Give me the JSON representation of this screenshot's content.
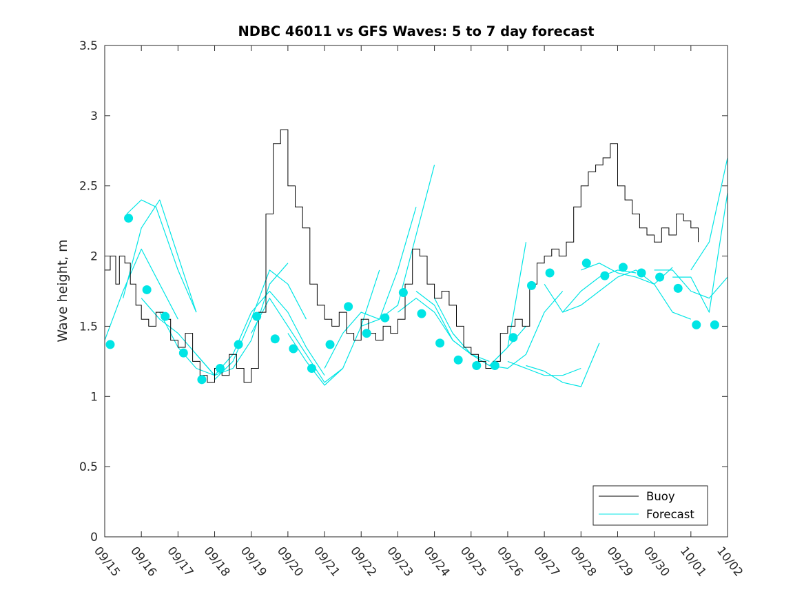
{
  "chart_data": {
    "type": "line",
    "title": "NDBC 46011 vs GFS Waves: 5 to 7 day forecast",
    "xlabel": "",
    "ylabel": "Wave height, m",
    "ylim": [
      0,
      3.5
    ],
    "xlim": [
      0,
      17
    ],
    "yticks": [
      0,
      0.5,
      1,
      1.5,
      2,
      2.5,
      3,
      3.5
    ],
    "ytick_labels": [
      "0",
      "0.5",
      "1",
      "1.5",
      "2",
      "2.5",
      "3",
      "3.5"
    ],
    "xticks": [
      0,
      1,
      2,
      3,
      4,
      5,
      6,
      7,
      8,
      9,
      10,
      11,
      12,
      13,
      14,
      15,
      16,
      17
    ],
    "xtick_labels": [
      "09/15",
      "09/16",
      "09/17",
      "09/18",
      "09/19",
      "09/20",
      "09/21",
      "09/22",
      "09/23",
      "09/24",
      "09/25",
      "09/26",
      "09/27",
      "09/28",
      "09/29",
      "09/30",
      "10/01",
      "10/02"
    ],
    "legend": {
      "position": "bottom-right",
      "entries": [
        {
          "label": "Buoy",
          "color": "#000000"
        },
        {
          "label": "Forecast",
          "color": "#00e5e5"
        }
      ]
    },
    "colors": {
      "buoy": "#000000",
      "forecast": "#00e5e5",
      "markers": "#00e5e5"
    },
    "buoy": {
      "name": "Buoy",
      "x": [
        0.0,
        0.15,
        0.3,
        0.4,
        0.55,
        0.7,
        0.85,
        1.0,
        1.2,
        1.4,
        1.6,
        1.8,
        2.0,
        2.2,
        2.4,
        2.6,
        2.8,
        3.0,
        3.2,
        3.4,
        3.6,
        3.8,
        4.0,
        4.2,
        4.4,
        4.6,
        4.8,
        5.0,
        5.2,
        5.4,
        5.6,
        5.8,
        6.0,
        6.2,
        6.4,
        6.6,
        6.8,
        7.0,
        7.2,
        7.4,
        7.6,
        7.8,
        8.0,
        8.2,
        8.4,
        8.6,
        8.8,
        9.0,
        9.2,
        9.4,
        9.6,
        9.8,
        10.0,
        10.2,
        10.4,
        10.6,
        10.8,
        11.0,
        11.2,
        11.4,
        11.6,
        11.8,
        12.0,
        12.2,
        12.4,
        12.6,
        12.8,
        13.0,
        13.2,
        13.4,
        13.6,
        13.8,
        14.0,
        14.2,
        14.4,
        14.6,
        14.8,
        15.0,
        15.2,
        15.4,
        15.6,
        15.8,
        16.0,
        16.2
      ],
      "values": [
        1.9,
        2.0,
        1.8,
        2.0,
        1.95,
        1.8,
        1.65,
        1.55,
        1.5,
        1.6,
        1.55,
        1.4,
        1.35,
        1.45,
        1.25,
        1.15,
        1.1,
        1.2,
        1.15,
        1.3,
        1.2,
        1.1,
        1.2,
        1.6,
        2.3,
        2.8,
        2.9,
        2.5,
        2.35,
        2.2,
        1.8,
        1.65,
        1.55,
        1.5,
        1.6,
        1.45,
        1.4,
        1.55,
        1.45,
        1.4,
        1.5,
        1.45,
        1.55,
        1.8,
        2.05,
        2.0,
        1.8,
        1.7,
        1.75,
        1.65,
        1.5,
        1.35,
        1.3,
        1.25,
        1.2,
        1.25,
        1.45,
        1.5,
        1.55,
        1.5,
        1.8,
        1.95,
        2.0,
        2.05,
        2.0,
        2.1,
        2.35,
        2.5,
        2.6,
        2.65,
        2.7,
        2.8,
        2.5,
        2.4,
        2.3,
        2.2,
        2.15,
        2.1,
        2.2,
        2.15,
        2.3,
        2.25,
        2.2,
        2.1
      ]
    },
    "forecast_series": [
      {
        "name": "Forecast",
        "x": [
          0.0,
          0.5,
          1.0,
          1.5,
          2.0
        ],
        "values": [
          1.4,
          1.75,
          2.05,
          1.8,
          1.55
        ]
      },
      {
        "name": "Forecast",
        "x": [
          0.5,
          1.0,
          1.5,
          2.0,
          2.5
        ],
        "values": [
          1.7,
          2.2,
          2.4,
          2.0,
          1.6
        ]
      },
      {
        "name": "Forecast",
        "x": [
          0.6,
          1.0,
          1.4,
          2.0,
          2.5
        ],
        "values": [
          2.3,
          2.4,
          2.35,
          1.9,
          1.6
        ]
      },
      {
        "name": "Forecast",
        "x": [
          1.0,
          1.5,
          2.0,
          2.5,
          3.0
        ],
        "values": [
          1.7,
          1.55,
          1.45,
          1.3,
          1.15
        ]
      },
      {
        "name": "Forecast",
        "x": [
          1.5,
          2.0,
          2.5,
          3.0,
          3.5
        ],
        "values": [
          1.6,
          1.35,
          1.2,
          1.15,
          1.3
        ]
      },
      {
        "name": "Forecast",
        "x": [
          2.5,
          3.0,
          3.5,
          4.0,
          4.5,
          5.0
        ],
        "values": [
          1.3,
          1.15,
          1.2,
          1.4,
          1.8,
          1.95
        ]
      },
      {
        "name": "Forecast",
        "x": [
          3.0,
          3.5,
          4.0,
          4.5,
          5.0,
          5.5
        ],
        "values": [
          1.12,
          1.25,
          1.55,
          1.9,
          1.8,
          1.55
        ]
      },
      {
        "name": "Forecast",
        "x": [
          3.5,
          4.0,
          4.5,
          5.0,
          5.5,
          6.0
        ],
        "values": [
          1.3,
          1.6,
          1.75,
          1.6,
          1.35,
          1.15
        ]
      },
      {
        "name": "Forecast",
        "x": [
          4.0,
          4.5,
          5.0,
          5.5,
          6.0,
          6.5
        ],
        "values": [
          1.45,
          1.7,
          1.5,
          1.3,
          1.1,
          1.2
        ]
      },
      {
        "name": "Forecast",
        "x": [
          5.0,
          5.5,
          6.0,
          6.5,
          7.0,
          7.5
        ],
        "values": [
          1.45,
          1.25,
          1.08,
          1.2,
          1.5,
          1.9
        ]
      },
      {
        "name": "Forecast",
        "x": [
          6.0,
          6.5,
          7.0,
          7.5,
          8.0,
          8.5
        ],
        "values": [
          1.2,
          1.45,
          1.6,
          1.55,
          1.9,
          2.35
        ]
      },
      {
        "name": "Forecast",
        "x": [
          7.0,
          7.5,
          8.0,
          8.5,
          9.0
        ],
        "values": [
          1.5,
          1.55,
          1.65,
          2.15,
          2.65
        ]
      },
      {
        "name": "Forecast",
        "x": [
          8.0,
          8.5,
          9.0,
          9.5,
          10.0
        ],
        "values": [
          1.6,
          1.7,
          1.6,
          1.4,
          1.3
        ]
      },
      {
        "name": "Forecast",
        "x": [
          8.5,
          9.0,
          9.5,
          10.0,
          10.5
        ],
        "values": [
          1.75,
          1.65,
          1.4,
          1.3,
          1.25
        ]
      },
      {
        "name": "Forecast",
        "x": [
          9.0,
          9.5,
          10.0,
          10.5,
          11.0,
          11.5
        ],
        "values": [
          1.7,
          1.45,
          1.3,
          1.22,
          1.35,
          1.5
        ]
      },
      {
        "name": "Forecast",
        "x": [
          9.5,
          10.0,
          10.5,
          11.0,
          11.5
        ],
        "values": [
          1.45,
          1.3,
          1.22,
          1.35,
          2.1
        ]
      },
      {
        "name": "Forecast",
        "x": [
          10.5,
          11.0,
          11.5,
          12.0,
          12.5
        ],
        "values": [
          1.22,
          1.2,
          1.3,
          1.6,
          1.75
        ]
      },
      {
        "name": "Forecast",
        "x": [
          11.0,
          11.5,
          12.0,
          12.5,
          13.0
        ],
        "values": [
          1.25,
          1.2,
          1.15,
          1.15,
          1.2
        ]
      },
      {
        "name": "Forecast",
        "x": [
          11.5,
          12.0,
          12.5,
          13.0,
          13.5
        ],
        "values": [
          1.22,
          1.18,
          1.1,
          1.07,
          1.38
        ]
      },
      {
        "name": "Forecast",
        "x": [
          12.0,
          12.5,
          13.0,
          13.5,
          14.0
        ],
        "values": [
          1.8,
          1.6,
          1.65,
          1.75,
          1.85
        ]
      },
      {
        "name": "Forecast",
        "x": [
          12.5,
          13.0,
          13.5,
          14.0,
          14.5
        ],
        "values": [
          1.6,
          1.75,
          1.85,
          1.9,
          1.88
        ]
      },
      {
        "name": "Forecast",
        "x": [
          13.0,
          13.5,
          14.0,
          14.5,
          15.0,
          15.5
        ],
        "values": [
          1.9,
          1.95,
          1.88,
          1.85,
          1.8,
          1.92
        ]
      },
      {
        "name": "Forecast",
        "x": [
          14.0,
          14.5,
          15.0,
          15.5,
          16.0
        ],
        "values": [
          1.85,
          1.9,
          1.8,
          1.6,
          1.55
        ]
      },
      {
        "name": "Forecast",
        "x": [
          15.0,
          15.5,
          16.0,
          16.5,
          17.0
        ],
        "values": [
          1.9,
          1.9,
          1.75,
          1.7,
          1.85
        ]
      },
      {
        "name": "Forecast",
        "x": [
          15.5,
          16.0,
          16.5,
          17.0
        ],
        "values": [
          1.85,
          1.85,
          1.6,
          2.45
        ]
      },
      {
        "name": "Forecast",
        "x": [
          16.0,
          16.5,
          17.0
        ],
        "values": [
          1.9,
          2.1,
          2.7
        ]
      }
    ],
    "forecast_markers": {
      "x": [
        0.15,
        0.65,
        1.15,
        1.65,
        2.15,
        2.65,
        3.15,
        3.65,
        4.15,
        4.65,
        5.15,
        5.65,
        6.15,
        6.65,
        7.15,
        7.65,
        8.15,
        8.65,
        9.15,
        9.65,
        10.15,
        10.65,
        11.15,
        11.65,
        12.15,
        13.15,
        13.65,
        14.15,
        14.65,
        15.15,
        15.65,
        16.15,
        16.65
      ],
      "values": [
        1.37,
        2.27,
        1.76,
        1.57,
        1.31,
        1.12,
        1.2,
        1.37,
        1.57,
        1.41,
        1.34,
        1.2,
        1.37,
        1.64,
        1.45,
        1.56,
        1.74,
        1.59,
        1.38,
        1.26,
        1.22,
        1.22,
        1.42,
        1.79,
        1.88,
        1.95,
        1.86,
        1.92,
        1.88,
        1.85,
        1.77,
        1.51,
        1.51
      ]
    }
  }
}
